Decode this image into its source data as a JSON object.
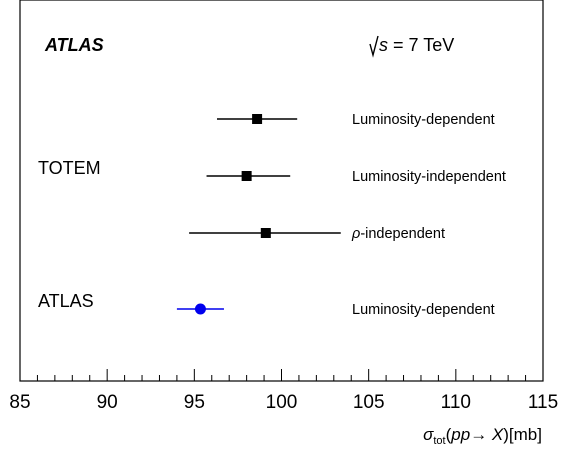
{
  "chart_data": {
    "type": "scatter",
    "orientation": "horizontal",
    "experiment_label": "ATLAS",
    "energy_label": {
      "root_symbol": "s",
      "rest": " = 7 TeV"
    },
    "xlim": [
      85,
      115
    ],
    "xticks": [
      "85",
      "90",
      "95",
      "100",
      "105",
      "110",
      "115"
    ],
    "xlabel": {
      "sigma": "σ",
      "sub": "tot",
      "paren": "(",
      "proc": "pp→ X",
      "unit": ")[mb]"
    },
    "groups": [
      {
        "label": "TOTEM",
        "row": 2
      },
      {
        "label": "ATLAS",
        "row": 4
      }
    ],
    "measurements": [
      {
        "experiment": "TOTEM",
        "label": "Luminosity-dependent",
        "value": 98.6,
        "low": 96.3,
        "high": 100.9,
        "row": 1,
        "marker": "square",
        "color": "#000000"
      },
      {
        "experiment": "TOTEM",
        "label": "Luminosity-independent",
        "value": 98.0,
        "low": 95.7,
        "high": 100.5,
        "row": 2,
        "marker": "square",
        "color": "#000000"
      },
      {
        "experiment": "TOTEM",
        "label": "-independent",
        "label_prefix": "ρ",
        "value": 99.1,
        "low": 94.7,
        "high": 103.4,
        "row": 3,
        "marker": "square",
        "color": "#000000"
      },
      {
        "experiment": "ATLAS",
        "label": "Luminosity-dependent",
        "value": 95.35,
        "low": 94.0,
        "high": 96.7,
        "row": 4,
        "marker": "circle",
        "color": "#0000ee"
      }
    ]
  }
}
